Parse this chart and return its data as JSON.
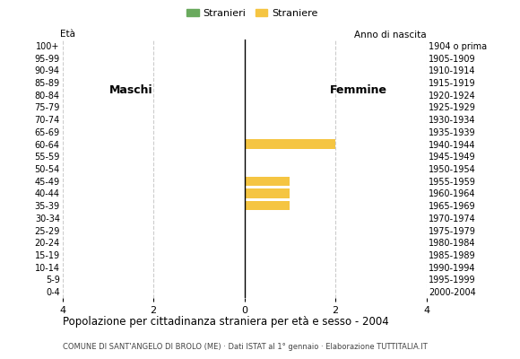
{
  "age_groups": [
    "100+",
    "95-99",
    "90-94",
    "85-89",
    "80-84",
    "75-79",
    "70-74",
    "65-69",
    "60-64",
    "55-59",
    "50-54",
    "45-49",
    "40-44",
    "35-39",
    "30-34",
    "25-29",
    "20-24",
    "15-19",
    "10-14",
    "5-9",
    "0-4"
  ],
  "birth_years": [
    "1904 o prima",
    "1905-1909",
    "1910-1914",
    "1915-1919",
    "1920-1924",
    "1925-1929",
    "1930-1934",
    "1935-1939",
    "1940-1944",
    "1945-1949",
    "1950-1954",
    "1955-1959",
    "1960-1964",
    "1965-1969",
    "1970-1974",
    "1975-1979",
    "1980-1984",
    "1985-1989",
    "1990-1994",
    "1995-1999",
    "2000-2004"
  ],
  "males": [
    0,
    0,
    0,
    0,
    0,
    0,
    0,
    0,
    0,
    0,
    0,
    0,
    0,
    0,
    0,
    0,
    0,
    0,
    0,
    0,
    0
  ],
  "females": [
    0,
    0,
    0,
    0,
    0,
    0,
    0,
    0,
    2,
    0,
    0,
    1,
    1,
    1,
    0,
    0,
    0,
    0,
    0,
    0,
    0
  ],
  "male_color": "#6aaa5e",
  "female_color": "#f5c542",
  "xlim": 4,
  "title": "Popolazione per cittadinanza straniera per età e sesso - 2004",
  "subtitle": "COMUNE DI SANT'ANGELO DI BROLO (ME) · Dati ISTAT al 1° gennaio · Elaborazione TUTTITALIA.IT",
  "legend_male": "Stranieri",
  "legend_female": "Straniere",
  "label_eta": "Età",
  "label_anno": "Anno di nascita",
  "label_maschi": "Maschi",
  "label_femmine": "Femmine",
  "background_color": "#ffffff",
  "grid_color": "#cccccc",
  "tick_fontsize": 7,
  "bar_height": 0.75
}
